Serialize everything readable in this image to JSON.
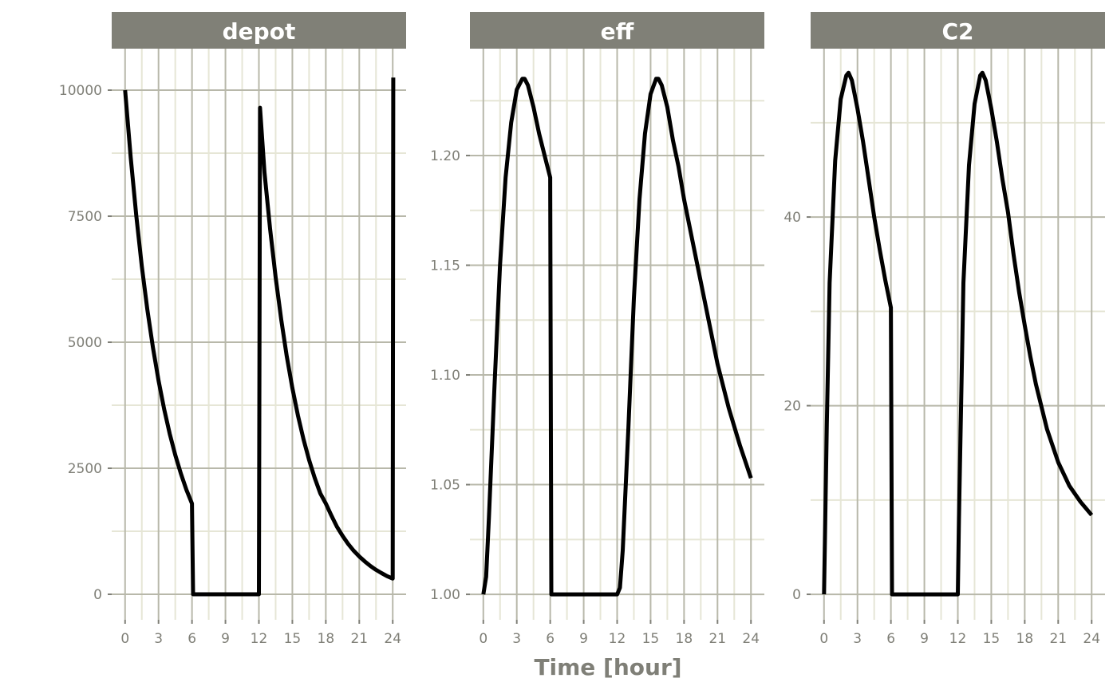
{
  "chart_data": {
    "type": "line",
    "xlabel": "Time [hour]",
    "grid": true,
    "line_color": "#000000",
    "strip_color": "#808077",
    "panels": [
      {
        "title": "depot",
        "xlim": [
          -1.2,
          25.2
        ],
        "ylim": [
          -506,
          10823
        ],
        "x_ticks": [
          0,
          3,
          6,
          9,
          12,
          15,
          18,
          21,
          24
        ],
        "y_ticks": [
          0,
          2500,
          5000,
          7500,
          10000
        ],
        "y_tick_labels": [
          "0",
          "2500",
          "5000",
          "7500",
          "10000"
        ],
        "x": [
          0,
          0.5,
          1,
          1.5,
          2,
          2.5,
          3,
          3.5,
          4,
          4.5,
          5,
          5.5,
          6,
          6.1,
          12,
          12.1,
          12.5,
          13,
          13.5,
          14,
          14.5,
          15,
          15.5,
          16,
          16.5,
          17,
          17.5,
          18,
          18.5,
          19,
          19.5,
          20,
          20.5,
          21,
          21.5,
          22,
          22.5,
          23,
          23.5,
          24,
          24.05
        ],
        "y": [
          10000,
          8668,
          7513,
          6512,
          5645,
          4893,
          4241,
          3676,
          3186,
          2762,
          2394,
          2075,
          1799,
          0,
          0,
          9650,
          8365,
          7250,
          6285,
          5447,
          4722,
          4093,
          3548,
          3075,
          2665,
          2310,
          2003,
          1800,
          1560,
          1340,
          1160,
          1000,
          865,
          750,
          650,
          560,
          485,
          420,
          360,
          312,
          10250
        ]
      },
      {
        "title": "eff",
        "xlim": [
          -1.2,
          25.2
        ],
        "ylim": [
          0.9884,
          1.2487
        ],
        "x_ticks": [
          0,
          3,
          6,
          9,
          12,
          15,
          18,
          21,
          24
        ],
        "y_ticks": [
          1.0,
          1.05,
          1.1,
          1.15,
          1.2
        ],
        "y_tick_labels": [
          "1.00",
          "1.05",
          "1.10",
          "1.15",
          "1.20"
        ],
        "x": [
          0,
          0.25,
          0.5,
          1,
          1.5,
          2,
          2.5,
          3,
          3.5,
          3.7,
          4,
          4.5,
          5,
          5.5,
          6,
          6.1,
          12,
          12.25,
          12.5,
          13,
          13.5,
          14,
          14.5,
          15,
          15.5,
          15.7,
          16,
          16.5,
          17,
          17.5,
          18,
          19,
          20,
          21,
          22,
          23,
          24
        ],
        "y": [
          1.0,
          1.008,
          1.035,
          1.095,
          1.15,
          1.19,
          1.215,
          1.23,
          1.235,
          1.235,
          1.232,
          1.222,
          1.21,
          1.2,
          1.19,
          1.0,
          1.0,
          1.003,
          1.02,
          1.075,
          1.135,
          1.18,
          1.21,
          1.228,
          1.235,
          1.235,
          1.232,
          1.222,
          1.207,
          1.195,
          1.18,
          1.155,
          1.13,
          1.105,
          1.085,
          1.068,
          1.053
        ]
      },
      {
        "title": "C2",
        "xlim": [
          -1.2,
          25.2
        ],
        "ylim": [
          -2.7,
          57.85
        ],
        "x_ticks": [
          0,
          3,
          6,
          9,
          12,
          15,
          18,
          21,
          24
        ],
        "y_ticks": [
          0,
          20,
          40
        ],
        "y_tick_labels": [
          "0",
          "20",
          "40"
        ],
        "x": [
          0,
          0.25,
          0.5,
          1,
          1.5,
          2,
          2.2,
          2.5,
          3,
          3.5,
          4,
          4.5,
          5,
          5.5,
          6,
          6.1,
          12,
          12.1,
          12.5,
          13,
          13.5,
          14,
          14.2,
          14.5,
          15,
          15.5,
          16,
          16.5,
          17,
          17.5,
          18,
          18.5,
          19,
          20,
          21,
          22,
          23,
          24
        ],
        "y": [
          0,
          18,
          33,
          46,
          52.5,
          55,
          55.3,
          54.5,
          51.5,
          48,
          44,
          40,
          36.5,
          33.3,
          30.4,
          0,
          0,
          8,
          33,
          45.5,
          52,
          55,
          55.3,
          54.5,
          51.5,
          48,
          44,
          40.5,
          36,
          32,
          28.5,
          25.2,
          22.3,
          17.5,
          14,
          11.5,
          9.8,
          8.4
        ]
      }
    ]
  }
}
